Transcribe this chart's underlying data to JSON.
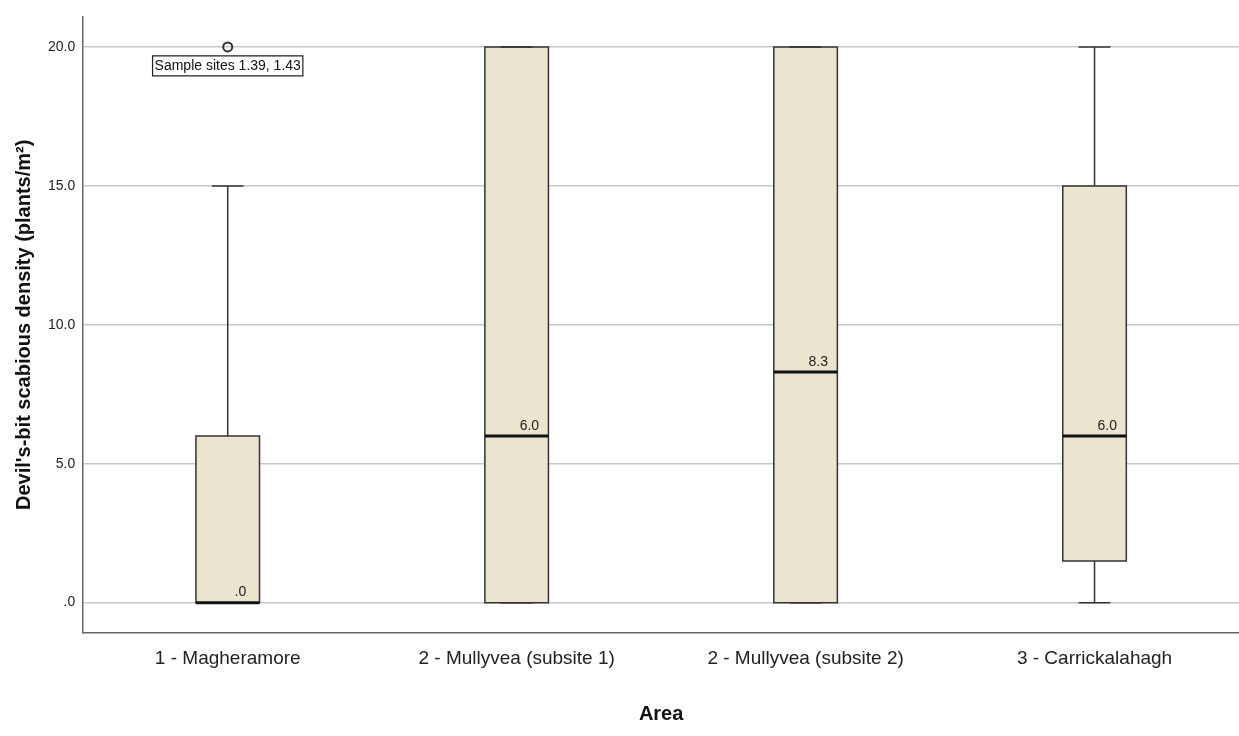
{
  "chart_data": {
    "type": "box",
    "xlabel": "Area",
    "ylabel": "Devil's-bit scabious density (plants/m²)",
    "categories": [
      "1 - Magheramore",
      "2 - Mullyvea (subsite 1)",
      "2 - Mullyvea (subsite 2)",
      "3 - Carrickalahagh"
    ],
    "boxes": [
      {
        "low": 0,
        "q1": 0,
        "median": 0,
        "q3": 6,
        "high": 15,
        "outliers": [
          20
        ]
      },
      {
        "low": 0,
        "q1": 0,
        "median": 6,
        "q3": 20,
        "high": 20
      },
      {
        "low": 0,
        "q1": 0,
        "median": 8.3,
        "q3": 20,
        "high": 20
      },
      {
        "low": 0,
        "q1": 1.5,
        "median": 6,
        "q3": 15,
        "high": 20
      }
    ],
    "value_labels": [
      ".0",
      "6.0",
      "8.3",
      "6.0"
    ],
    "color": "#ebe4cf",
    "ylim": [
      -1.1,
      21.1
    ],
    "yticks": [
      {
        "value": 0,
        "label": ".0"
      },
      {
        "value": 5,
        "label": "5.0"
      },
      {
        "value": 10,
        "label": "10.0"
      },
      {
        "value": 15,
        "label": "15.0"
      },
      {
        "value": 20,
        "label": "20.0"
      }
    ],
    "grid": "y",
    "legend": false,
    "annotations": [
      "Sample sites 1.39, 1.43"
    ]
  }
}
